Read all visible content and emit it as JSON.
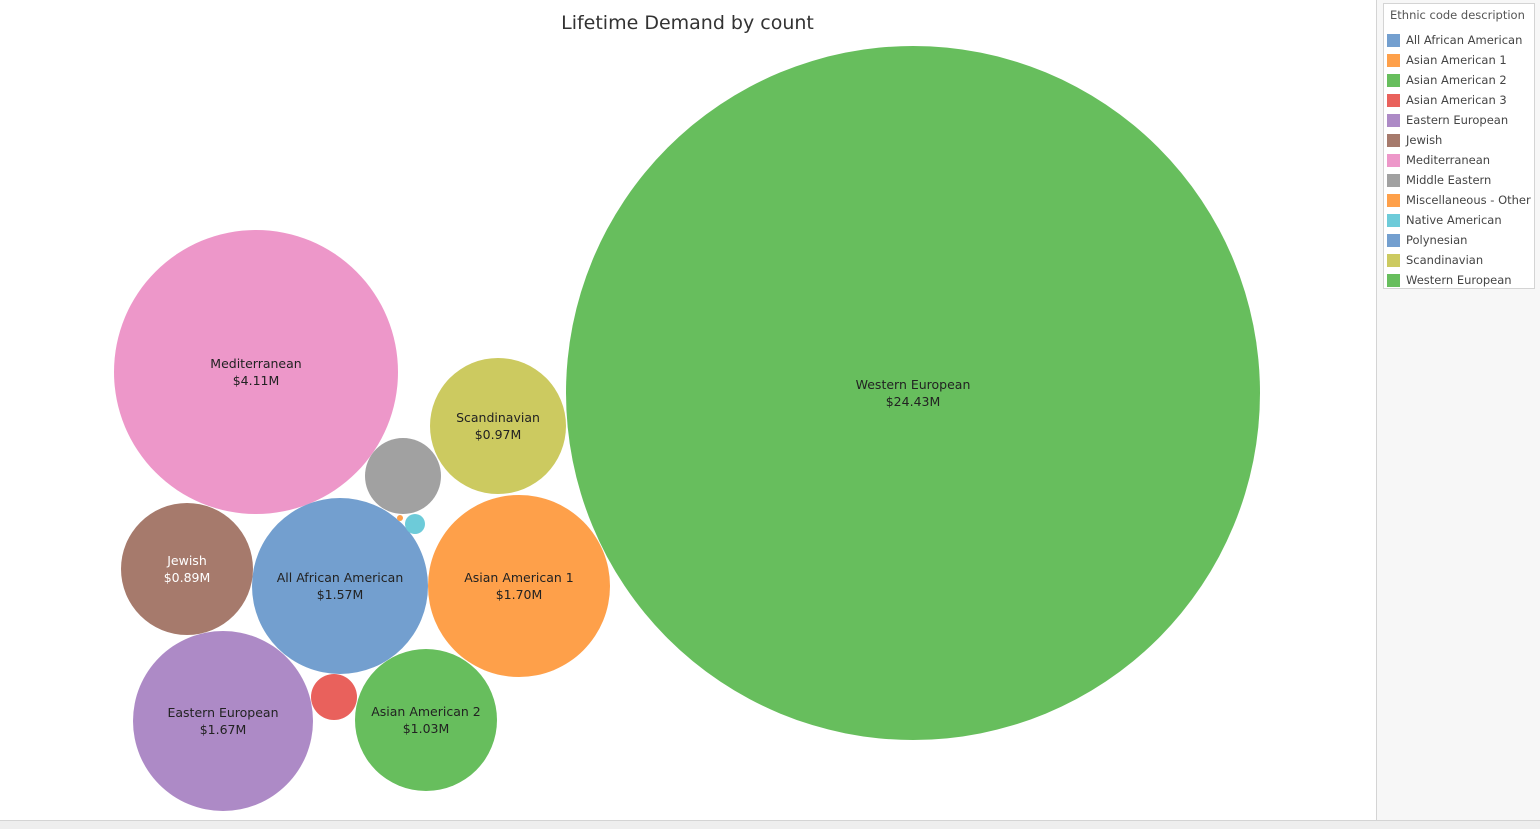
{
  "chart_data": {
    "type": "bubble",
    "title": "Lifetime Demand by count",
    "legend": {
      "title": "Ethnic code description",
      "placement": "top-right",
      "items": [
        {
          "label": "All African American",
          "color": "#739fcf"
        },
        {
          "label": "Asian American 1",
          "color": "#fea04a"
        },
        {
          "label": "Asian American 2",
          "color": "#67be5d"
        },
        {
          "label": "Asian American 3",
          "color": "#e9615c"
        },
        {
          "label": "Eastern European",
          "color": "#ad8ac6"
        },
        {
          "label": "Jewish",
          "color": "#a67a6c"
        },
        {
          "label": "Mediterranean",
          "color": "#ed97c9"
        },
        {
          "label": "Middle Eastern",
          "color": "#a1a1a1"
        },
        {
          "label": "Miscellaneous - Other",
          "color": "#fea04a"
        },
        {
          "label": "Native American",
          "color": "#6dcbd9"
        },
        {
          "label": "Polynesian",
          "color": "#739fcf"
        },
        {
          "label": "Scandinavian",
          "color": "#ccca60"
        },
        {
          "label": "Western European",
          "color": "#67be5d"
        }
      ]
    },
    "bubbles": [
      {
        "category": "Western European",
        "name": "Western European",
        "value_label": "$24.43M",
        "value": 24.43,
        "color": "#67be5d",
        "label_color": "#222222"
      },
      {
        "category": "Mediterranean",
        "name": "Mediterranean",
        "value_label": "$4.11M",
        "value": 4.11,
        "color": "#ed97c9",
        "label_color": "#222222"
      },
      {
        "category": "Asian American 1",
        "name": "Asian American 1",
        "value_label": "$1.70M",
        "value": 1.7,
        "color": "#fea04a",
        "label_color": "#222222"
      },
      {
        "category": "Eastern European",
        "name": "Eastern European",
        "value_label": "$1.67M",
        "value": 1.67,
        "color": "#ad8ac6",
        "label_color": "#222222"
      },
      {
        "category": "All African American",
        "name": "All African American",
        "value_label": "$1.57M",
        "value": 1.57,
        "color": "#739fcf",
        "label_color": "#222222"
      },
      {
        "category": "Asian American 2",
        "name": "Asian American 2",
        "value_label": "$1.03M",
        "value": 1.03,
        "color": "#67be5d",
        "label_color": "#222222"
      },
      {
        "category": "Scandinavian",
        "name": "Scandinavian",
        "value_label": "$0.97M",
        "value": 0.97,
        "color": "#ccca60",
        "label_color": "#222222"
      },
      {
        "category": "Jewish",
        "name": "Jewish",
        "value_label": "$0.89M",
        "value": 0.89,
        "color": "#a67a6c",
        "label_color": "#ffffff"
      },
      {
        "category": "Middle Eastern",
        "name": "",
        "value_label": "",
        "color": "#a1a1a1"
      },
      {
        "category": "Asian American 3",
        "name": "",
        "value_label": "",
        "color": "#e9615c"
      },
      {
        "category": "Native American",
        "name": "",
        "value_label": "",
        "color": "#6dcbd9"
      },
      {
        "category": "Miscellaneous - Other",
        "name": "",
        "value_label": "",
        "color": "#fea04a"
      }
    ]
  }
}
